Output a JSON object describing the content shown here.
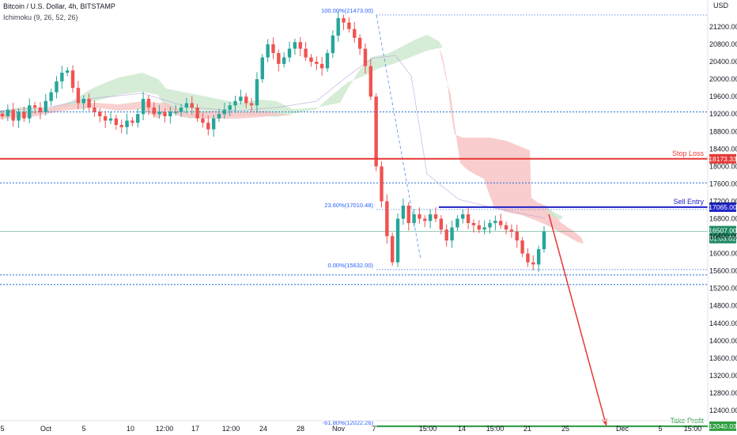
{
  "header": {
    "symbol": "Bitcoin / U.S. Dollar, 4h, BITSTAMP",
    "indicator": "Ichimoku (9, 26, 52, 26)",
    "currency": "USD"
  },
  "chart_data": {
    "type": "candlestick",
    "ylim": [
      11900,
      21600
    ],
    "y_ticks": [
      12400,
      12800,
      13200,
      13600,
      14000,
      14400,
      14800,
      15200,
      15600,
      16000,
      16400,
      16800,
      17200,
      17600,
      18000,
      18400,
      18800,
      19200,
      19600,
      20000,
      20400,
      20800,
      21200
    ],
    "x_ticks": [
      "5",
      "Oct",
      "5",
      "10",
      "12:00",
      "17",
      "12:00",
      "24",
      "28",
      "Nov",
      "7",
      "15:00",
      "14",
      "15:00",
      "21",
      "25",
      "Dec",
      "5",
      "15:00"
    ],
    "close_path": [
      19150,
      19300,
      19050,
      19250,
      19100,
      19400,
      19350,
      19250,
      19500,
      19700,
      19950,
      20150,
      20200,
      19800,
      19450,
      19550,
      19350,
      19250,
      19150,
      19050,
      19100,
      18950,
      18900,
      19050,
      19000,
      19200,
      19550,
      19350,
      19200,
      19250,
      19150,
      19250,
      19250,
      19350,
      19450,
      19350,
      19100,
      19000,
      18850,
      19100,
      19200,
      19300,
      19400,
      19500,
      19600,
      19450,
      19400,
      20000,
      20500,
      20800,
      20600,
      20350,
      20500,
      20700,
      20850,
      20700,
      20500,
      20400,
      20350,
      20250,
      20600,
      21000,
      21400,
      21300,
      21150,
      20950,
      20700,
      20300,
      19600,
      18000,
      17200,
      16400,
      15800,
      16800,
      17100,
      16700,
      16900,
      16800,
      16750,
      16900,
      16800,
      16550,
      16300,
      16600,
      16800,
      16900,
      16700,
      16650,
      16550,
      16600,
      16700,
      16750,
      16650,
      16550,
      16500,
      16300,
      16000,
      15800,
      15750,
      16100,
      16507
    ],
    "fibonacci": [
      {
        "label": "100.00%(21473.00)",
        "price": 21473
      },
      {
        "label": "23.60%(17010.48)",
        "price": 17010.48
      },
      {
        "label": "0.00%(15632.00)",
        "price": 15632
      },
      {
        "label": "-61.80%(12022.26)",
        "price": 12022.26
      }
    ],
    "levels": [
      {
        "name": "Stop Loss",
        "price_label": "18173.33",
        "price": 18173.33,
        "color": "#e53935"
      },
      {
        "name": "Sell Entry",
        "price_label": "17065.00",
        "price": 17065,
        "color": "#1e22c7"
      },
      {
        "name": "Take Profit",
        "price_label": "12040.03",
        "price": 12040.03,
        "color": "#2e9e3f"
      }
    ],
    "current_price": {
      "price_label": "16507.00",
      "timer": "01:03:02",
      "price": 16507,
      "color": "#1f8a63"
    },
    "support_resistance_dotted": [
      19250,
      17620,
      15510,
      15290
    ],
    "projection_arrow": {
      "from_price": 16900,
      "to_price": 12100,
      "color": "#e53935"
    }
  }
}
